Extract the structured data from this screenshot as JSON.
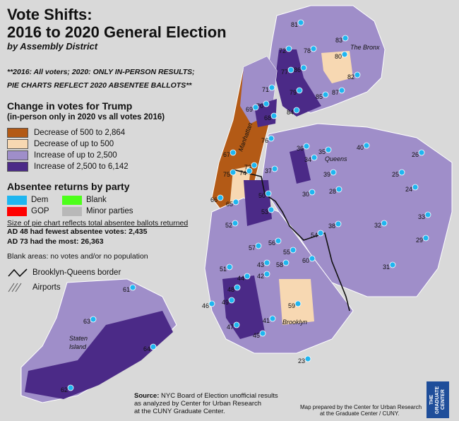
{
  "title_line1": "Vote Shifts:",
  "title_line2": "2016 to 2020 General Election",
  "subtitle": "by Assembly District",
  "note_line1": "**2016: All voters; 2020: ONLY IN-PERSON RESULTS;",
  "note_line2": "PIE CHARTS REFLECT 2020 ABSENTEE BALLOTS**",
  "legend_change": {
    "heading": "Change in votes for Trump",
    "subheading": "(in-person only in 2020 vs all votes 2016)",
    "items": [
      {
        "label": "Decrease of 500 to 2,864",
        "color": "#b35a16"
      },
      {
        "label": "Decrease of up to 500",
        "color": "#f7d8b2"
      },
      {
        "label": "Increase of up to 2,500",
        "color": "#9f8ec9"
      },
      {
        "label": "Increase of 2,500 to 6,142",
        "color": "#4b2a87"
      }
    ]
  },
  "legend_party": {
    "heading": "Absentee returns by party",
    "items": [
      {
        "label": "Dem",
        "color": "#1fb6f0"
      },
      {
        "label": "Blank",
        "color": "#4cff1a"
      },
      {
        "label": "GOP",
        "color": "#ff0000"
      },
      {
        "label": "Minor parties",
        "color": "#b8b8b8"
      }
    ]
  },
  "size_note": "Size of pie chart reflects total absentee ballots returned",
  "fewest_prefix": "AD 48 had fewest absentee votes: ",
  "fewest_value": "2,435",
  "most_prefix": "AD 73 had the most: ",
  "most_value": "26,363",
  "blank_areas": "Blank areas: no votes and/or no population",
  "border_label": "Brooklyn-Queens border",
  "airports_label": "Airports",
  "place_labels": {
    "bronx": "The Bronx",
    "manhattan": "Manhattan",
    "queens": "Queens",
    "brooklyn": "Brooklyn",
    "staten_island_1": "Staten",
    "staten_island_2": "Island"
  },
  "districts": [
    "81",
    "72",
    "78",
    "80",
    "83",
    "77",
    "86",
    "82",
    "71",
    "79",
    "87",
    "70",
    "85",
    "84",
    "69",
    "68",
    "67",
    "76",
    "75",
    "73",
    "74",
    "66",
    "65",
    "36",
    "35",
    "40",
    "26",
    "34",
    "39",
    "37",
    "25",
    "30",
    "28",
    "24",
    "50",
    "53",
    "38",
    "33",
    "52",
    "54",
    "32",
    "29",
    "57",
    "56",
    "55",
    "60",
    "51",
    "43",
    "58",
    "44",
    "42",
    "31",
    "61",
    "48",
    "46",
    "49",
    "47",
    "45",
    "41",
    "59",
    "63",
    "64",
    "23",
    "62"
  ],
  "source_label": "Source:",
  "source_line1": " NYC Board of Election unofficial results",
  "source_line2": "as analyzed by Center for Urban Research",
  "source_line3": "at the CUNY Graduate Center.",
  "credit_line1": "Map prepared by the Center for Urban Research",
  "credit_line2": "at the Graduate Center / CUNY.",
  "logo_text": "THE GRADUATE CENTER"
}
